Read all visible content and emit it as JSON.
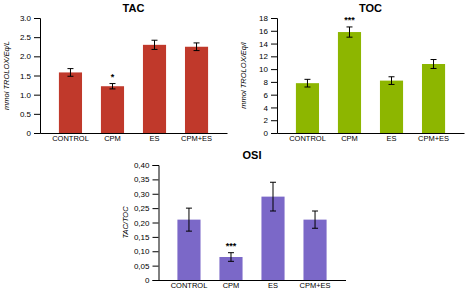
{
  "chart_data": [
    {
      "type": "bar",
      "title": "TAC",
      "ylabel": "mmol TROLOX/Eq/L",
      "categories": [
        "CONTROL",
        "CPM",
        "ES",
        "CPM+ES"
      ],
      "values": [
        1.58,
        1.22,
        2.3,
        2.25
      ],
      "errors": [
        0.1,
        0.07,
        0.12,
        0.1
      ],
      "color": "#C0392B",
      "ylim": [
        0,
        3.0
      ],
      "yticks": [
        0,
        0.5,
        {
          "value": 1.0,
          "label": "1.0"
        },
        1.5,
        {
          "value": 2.0,
          "label": "2.0"
        },
        2.5,
        {
          "value": 3.0,
          "label": "3.0"
        }
      ],
      "annotations": [
        {
          "index": 1,
          "text": "*"
        }
      ]
    },
    {
      "type": "bar",
      "title": "TOC",
      "ylabel": "mmol TROLOX/Eq/l",
      "categories": [
        "CONTROL",
        "CPM",
        "ES",
        "CPM+ES"
      ],
      "values": [
        7.8,
        15.8,
        8.2,
        10.8
      ],
      "errors": [
        0.6,
        0.8,
        0.6,
        0.7
      ],
      "color": "#8DB600",
      "ylim": [
        0,
        18
      ],
      "yticks": [
        0,
        2,
        4,
        6,
        8,
        10,
        12,
        14,
        16,
        18
      ],
      "annotations": [
        {
          "index": 1,
          "text": "***"
        }
      ]
    },
    {
      "type": "bar",
      "title": "OSI",
      "ylabel": "TAC/TOC",
      "categories": [
        "CONTROL",
        "CPM",
        "ES",
        "CPM+ES"
      ],
      "values": [
        0.21,
        0.08,
        0.29,
        0.21
      ],
      "errors": [
        0.04,
        0.015,
        0.05,
        0.03
      ],
      "color": "#7B68C8",
      "ylim": [
        0,
        0.4
      ],
      "yticks": [
        0,
        {
          "value": 0.05,
          "label": "0,05"
        },
        {
          "value": 0.1,
          "label": "0,10"
        },
        {
          "value": 0.15,
          "label": "0,15"
        },
        {
          "value": 0.2,
          "label": "0,20"
        },
        {
          "value": 0.25,
          "label": "0,25"
        },
        {
          "value": 0.3,
          "label": "0,30"
        },
        {
          "value": 0.35,
          "label": "0,35"
        },
        {
          "value": 0.4,
          "label": "0,40"
        }
      ],
      "annotations": [
        {
          "index": 1,
          "text": "***"
        }
      ]
    }
  ]
}
